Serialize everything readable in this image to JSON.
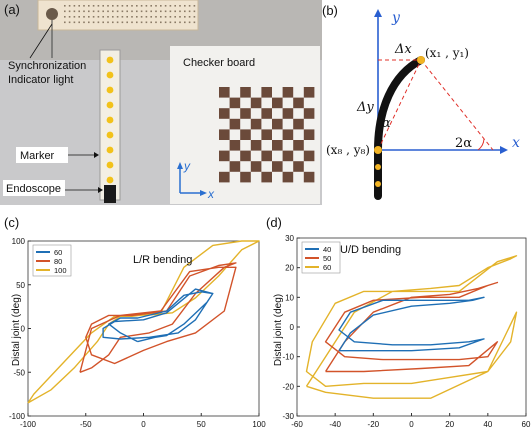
{
  "panels": {
    "a": {
      "label": "(a)",
      "annotations": {
        "sync_line1": "Synchronization",
        "sync_line2": "Indicator light",
        "checker": "Checker board",
        "marker": "Marker",
        "endoscope": "Endoscope",
        "axis_y": "y",
        "axis_x": "x"
      }
    },
    "b": {
      "label": "(b)",
      "axis_y": "y",
      "axis_x": "x",
      "dx": "Δx",
      "dy": "Δy",
      "alpha": "α",
      "two_alpha": "2α",
      "p1": "(x₁ , y₁)",
      "p8": "(x₈ , y₈)"
    },
    "c": {
      "label": "(c)"
    },
    "d": {
      "label": "(d)"
    }
  },
  "colors": {
    "blue": "#1f6fb5",
    "orange": "#d2532a",
    "yellow": "#e3b32a",
    "axis": "#222222",
    "board": "#6b4a3a",
    "red_dash": "#e0302a"
  },
  "chart_data": [
    {
      "panel": "c",
      "type": "line",
      "title": "L/R bending",
      "ylabel": "Distal joint (deg)",
      "xlabel": "",
      "xlim": [
        -100,
        100
      ],
      "ylim": [
        -100,
        100
      ],
      "xticks": [
        -100,
        -50,
        0,
        50,
        100
      ],
      "yticks": [
        -100,
        -50,
        0,
        50,
        100
      ],
      "legend": "top-left",
      "series": [
        {
          "name": "60",
          "color": "#1f6fb5",
          "x": [
            -5,
            10,
            20,
            35,
            55,
            60,
            45,
            20,
            0,
            -25,
            -35,
            -35,
            -20,
            5,
            30,
            45,
            60,
            50,
            35,
            20,
            -5,
            -20,
            -30,
            -20,
            -5
          ],
          "y": [
            -15,
            -10,
            -8,
            5,
            30,
            40,
            45,
            18,
            10,
            8,
            0,
            -10,
            -12,
            -10,
            -5,
            10,
            40,
            42,
            38,
            20,
            12,
            12,
            5,
            -5,
            -15
          ]
        },
        {
          "name": "80",
          "color": "#d2532a",
          "x": [
            -55,
            -45,
            -30,
            -20,
            5,
            25,
            45,
            70,
            80,
            65,
            40,
            20,
            -10,
            -30,
            -45,
            -50,
            -45,
            -25,
            0,
            20,
            45,
            70,
            80,
            65,
            40,
            15,
            -20,
            -45,
            -55
          ],
          "y": [
            -50,
            -45,
            -30,
            -10,
            -5,
            5,
            40,
            70,
            75,
            72,
            60,
            20,
            15,
            15,
            5,
            -10,
            -30,
            -40,
            -25,
            -15,
            -5,
            20,
            70,
            70,
            65,
            20,
            15,
            0,
            -50
          ]
        },
        {
          "name": "100",
          "color": "#e3b32a",
          "x": [
            -100,
            -80,
            -60,
            -40,
            -30,
            -20,
            10,
            25,
            45,
            65,
            85,
            100,
            85,
            60,
            35,
            15,
            -10,
            -25,
            -45,
            -70,
            -95,
            -100
          ],
          "y": [
            -85,
            -70,
            -45,
            -15,
            5,
            14,
            16,
            18,
            35,
            60,
            90,
            100,
            100,
            95,
            70,
            18,
            14,
            14,
            -5,
            -40,
            -75,
            -85
          ]
        }
      ]
    },
    {
      "panel": "d",
      "type": "line",
      "title": "U/D bending",
      "ylabel": "Distal joint (deg)",
      "xlabel": "",
      "xlim": [
        -60,
        60
      ],
      "ylim": [
        -30,
        30
      ],
      "xticks": [
        -60,
        -40,
        -20,
        0,
        20,
        40,
        60
      ],
      "yticks": [
        -30,
        -20,
        -10,
        0,
        10,
        20,
        30
      ],
      "legend": "top-left",
      "series": [
        {
          "name": "40",
          "color": "#1f6fb5",
          "x": [
            -38,
            -32,
            -20,
            0,
            20,
            32,
            38,
            30,
            10,
            -15,
            -32,
            -38,
            -30,
            -10,
            10,
            30,
            38,
            25,
            0,
            -25,
            -38
          ],
          "y": [
            -8,
            -2,
            4,
            7,
            8,
            9,
            10,
            9,
            9,
            9,
            5,
            -1,
            -5,
            -6,
            -6,
            -5,
            -4,
            -7,
            -8,
            -8,
            -8
          ]
        },
        {
          "name": "50",
          "color": "#d2532a",
          "x": [
            -45,
            -35,
            -20,
            0,
            20,
            35,
            45,
            40,
            25,
            5,
            -20,
            -35,
            -45,
            -35,
            -15,
            5,
            25,
            40,
            45,
            30,
            5,
            -25,
            -45
          ],
          "y": [
            -15,
            -5,
            5,
            10,
            11,
            13,
            15,
            14,
            10,
            10,
            9,
            5,
            -5,
            -10,
            -11,
            -11,
            -11,
            -10,
            -5,
            -13,
            -14,
            -15,
            -15
          ]
        },
        {
          "name": "60",
          "color": "#e3b32a",
          "x": [
            -55,
            -45,
            -30,
            -10,
            10,
            25,
            40,
            52,
            55,
            45,
            25,
            0,
            -25,
            -40,
            -52,
            -55,
            -45,
            -25,
            0,
            20,
            40,
            52,
            55,
            40,
            10,
            -20,
            -45,
            -55
          ],
          "y": [
            -20,
            -10,
            5,
            12,
            13,
            14,
            20,
            23,
            24,
            22,
            12,
            12,
            12,
            8,
            -5,
            -15,
            -20,
            -19,
            -19,
            -17,
            -15,
            -5,
            5,
            -15,
            -24,
            -24,
            -22,
            -20
          ]
        }
      ]
    }
  ]
}
